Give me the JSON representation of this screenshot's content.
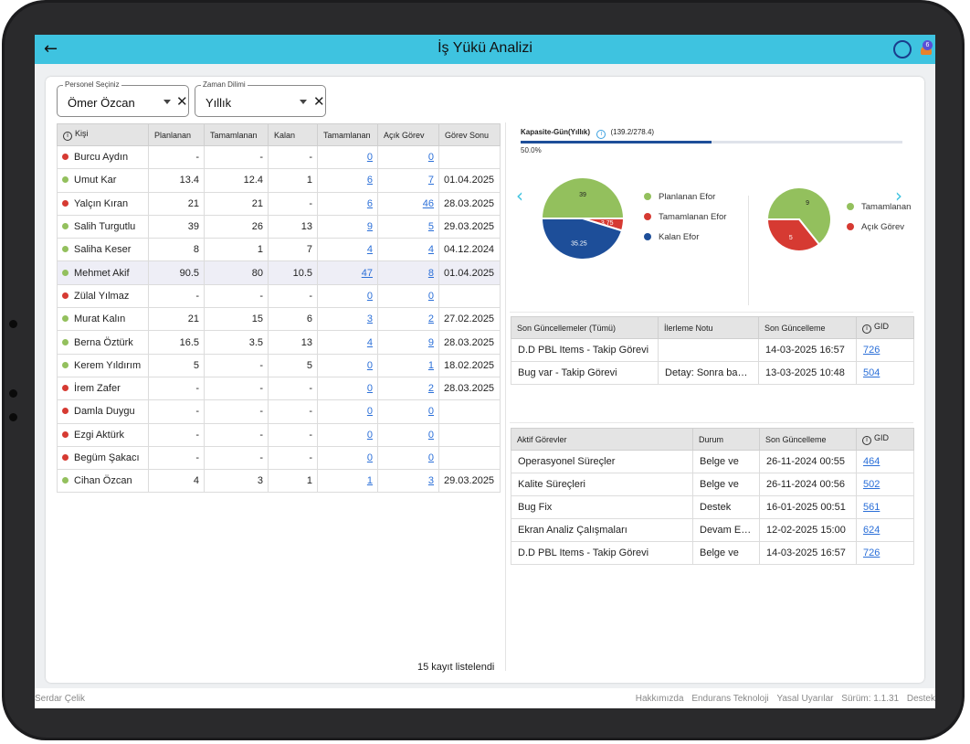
{
  "app": {
    "title": "İş Yükü Analizi"
  },
  "filters": {
    "personel": {
      "label": "Personel Seçiniz",
      "value": "Ömer Özcan"
    },
    "zaman": {
      "label": "Zaman Dilimi",
      "value": "Yıllık"
    }
  },
  "personnel_table": {
    "headers": [
      "Kişi",
      "Planlanan",
      "Tamamlanan",
      "Kalan",
      "Tamamlanan",
      "Açık Görev",
      "Görev Sonu"
    ],
    "rows": [
      {
        "name": "Burcu Aydın",
        "status": "red",
        "planned": "-",
        "done": "-",
        "left": "-",
        "done_tasks": "0",
        "open": "0",
        "end": ""
      },
      {
        "name": "Umut Kar",
        "status": "green",
        "planned": "13.4",
        "done": "12.4",
        "left": "1",
        "done_tasks": "6",
        "open": "7",
        "end": "01.04.2025"
      },
      {
        "name": "Yalçın Kıran",
        "status": "red",
        "planned": "21",
        "done": "21",
        "left": "-",
        "done_tasks": "6",
        "open": "46",
        "end": "28.03.2025"
      },
      {
        "name": "Salih Turgutlu",
        "status": "green",
        "planned": "39",
        "done": "26",
        "left": "13",
        "done_tasks": "9",
        "open": "5",
        "end": "29.03.2025"
      },
      {
        "name": "Saliha Keser",
        "status": "green",
        "planned": "8",
        "done": "1",
        "left": "7",
        "done_tasks": "4",
        "open": "4",
        "end": "04.12.2024"
      },
      {
        "name": "Mehmet Akif",
        "status": "green",
        "planned": "90.5",
        "done": "80",
        "left": "10.5",
        "done_tasks": "47",
        "open": "8",
        "end": "01.04.2025"
      },
      {
        "name": "Zülal Yılmaz",
        "status": "red",
        "planned": "-",
        "done": "-",
        "left": "-",
        "done_tasks": "0",
        "open": "0",
        "end": ""
      },
      {
        "name": "Murat Kalın",
        "status": "green",
        "planned": "21",
        "done": "15",
        "left": "6",
        "done_tasks": "3",
        "open": "2",
        "end": "27.02.2025"
      },
      {
        "name": "Berna Öztürk",
        "status": "green",
        "planned": "16.5",
        "done": "3.5",
        "left": "13",
        "done_tasks": "4",
        "open": "9",
        "end": "28.03.2025"
      },
      {
        "name": "Kerem Yıldırım",
        "status": "green",
        "planned": "5",
        "done": "-",
        "left": "5",
        "done_tasks": "0",
        "open": "1",
        "end": "18.02.2025"
      },
      {
        "name": "İrem Zafer",
        "status": "red",
        "planned": "-",
        "done": "-",
        "left": "-",
        "done_tasks": "0",
        "open": "2",
        "end": "28.03.2025"
      },
      {
        "name": "Damla Duygu",
        "status": "red",
        "planned": "-",
        "done": "-",
        "left": "-",
        "done_tasks": "0",
        "open": "0",
        "end": ""
      },
      {
        "name": "Ezgi Aktürk",
        "status": "red",
        "planned": "-",
        "done": "-",
        "left": "-",
        "done_tasks": "0",
        "open": "0",
        "end": ""
      },
      {
        "name": "Begüm Şakacı",
        "status": "red",
        "planned": "-",
        "done": "-",
        "left": "-",
        "done_tasks": "0",
        "open": "0",
        "end": ""
      },
      {
        "name": "Cihan Özcan",
        "status": "green",
        "planned": "4",
        "done": "3",
        "left": "1",
        "done_tasks": "1",
        "open": "3",
        "end": "29.03.2025"
      }
    ],
    "selected_index": 5,
    "count_text": "15 kayıt listelendi"
  },
  "capacity": {
    "label": "Kapasite-Gün(Yıllık)",
    "value_text": "(139.2/278.4)",
    "percent_text": "50.0%",
    "fraction": 0.5
  },
  "chart_data": [
    {
      "type": "pie",
      "slices": [
        {
          "label": "Planlanan Efor",
          "value": 39,
          "color": "#93c05d"
        },
        {
          "label": "Tamamlanan Efor",
          "value": 3.75,
          "color": "#d63a32"
        },
        {
          "label": "Kalan Efor",
          "value": 35.25,
          "color": "#1d4e99"
        }
      ]
    },
    {
      "type": "pie",
      "slices": [
        {
          "label": "Tamamlanan",
          "value": 9,
          "color": "#93c05d"
        },
        {
          "label": "Açık Görev",
          "value": 5,
          "color": "#d63a32"
        }
      ]
    }
  ],
  "updates_table": {
    "headers": [
      "Son Güncellemeler (Tümü)",
      "İlerleme Notu",
      "Son Güncelleme",
      "GID"
    ],
    "rows": [
      {
        "title": "D.D PBL Items - Takip Görevi",
        "note": "",
        "date": "14-03-2025 16:57",
        "gid": "726"
      },
      {
        "title": "Bug var - Takip Görevi",
        "note": "Detay: Sonra başlay...",
        "date": "13-03-2025 10:48",
        "gid": "504"
      }
    ]
  },
  "active_table": {
    "headers": [
      "Aktif Görevler",
      "Durum",
      "Son Güncelleme",
      "GID"
    ],
    "rows": [
      {
        "title": "Operasyonel Süreçler",
        "status": "Belge ve",
        "date": "26-11-2024 00:55",
        "gid": "464"
      },
      {
        "title": "Kalite Süreçleri",
        "status": "Belge ve",
        "date": "26-11-2024 00:56",
        "gid": "502"
      },
      {
        "title": "Bug Fix",
        "status": "Destek",
        "date": "16-01-2025 00:51",
        "gid": "561"
      },
      {
        "title": "Ekran Analiz Çalışmaları",
        "status": "Devam Ediyor",
        "date": "12-02-2025 15:00",
        "gid": "624"
      },
      {
        "title": "D.D PBL Items - Takip Görevi",
        "status": "Belge ve",
        "date": "14-03-2025 16:57",
        "gid": "726"
      }
    ]
  },
  "notification_count": "6",
  "footer": {
    "user": "Serdar Çelik",
    "links": [
      "Hakkımızda",
      "Endurans Teknoloji",
      "Yasal Uyarılar",
      "Sürüm: 1.1.31",
      "Destek"
    ]
  }
}
